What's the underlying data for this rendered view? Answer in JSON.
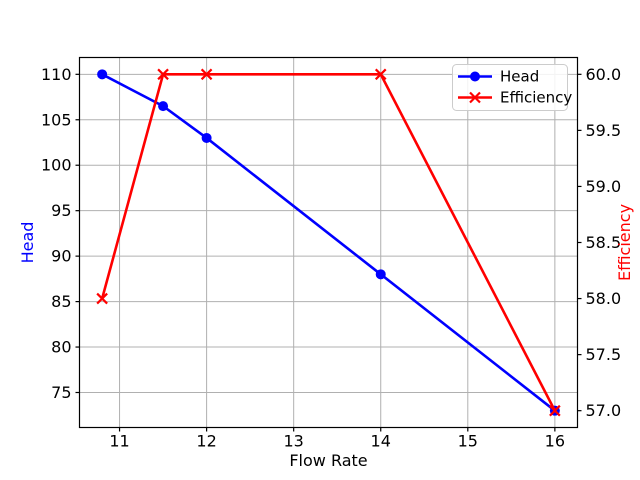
{
  "figure": {
    "background": "#ffffff"
  },
  "chart_data": {
    "type": "line",
    "title": "",
    "xlabel": "Flow Rate",
    "ylabel_left": "Head",
    "ylabel_right": "Efficiency",
    "x": [
      10.8,
      11.5,
      12,
      14,
      16
    ],
    "series": [
      {
        "name": "Head",
        "axis": "left",
        "color": "#0000ff",
        "marker": "circle",
        "values": [
          110,
          106.5,
          103,
          88,
          73
        ]
      },
      {
        "name": "Efficiency",
        "axis": "right",
        "color": "#ff0000",
        "marker": "x",
        "values": [
          58.0,
          60.0,
          60.0,
          60.0,
          57.0
        ]
      }
    ],
    "xlim": [
      10.54,
      16.26
    ],
    "ylim_left": [
      71.15,
      111.85
    ],
    "ylim_right": [
      56.85,
      60.15
    ],
    "xticks": [
      11,
      12,
      13,
      14,
      15,
      16
    ],
    "yticks_left": [
      75,
      80,
      85,
      90,
      95,
      100,
      105,
      110
    ],
    "yticks_right": [
      57.0,
      57.5,
      58.0,
      58.5,
      59.0,
      59.5,
      60.0
    ],
    "yticks_right_decimals": 1,
    "grid": true,
    "legend": {
      "position": "upper right",
      "entries": [
        "Head",
        "Efficiency"
      ]
    },
    "colors": {
      "grid": "#b0b0b0",
      "spine": "#000000",
      "tick_label": "#000000",
      "xlabel": "#000000",
      "ylabel_left": "#0000ff",
      "ylabel_right": "#ff0000",
      "legend_border": "#cccccc",
      "legend_bg": "#ffffff"
    }
  }
}
